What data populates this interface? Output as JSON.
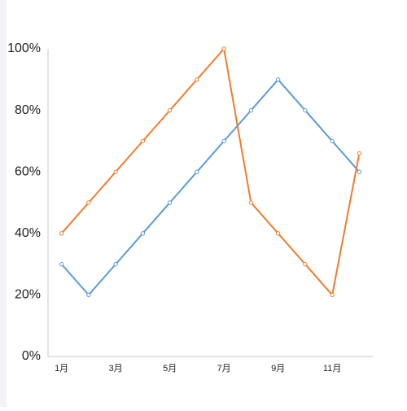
{
  "chart_data": {
    "type": "line",
    "categories": [
      "1月",
      null,
      "3月",
      null,
      "5月",
      null,
      "7月",
      null,
      "9月",
      null,
      "11月",
      null
    ],
    "series": [
      {
        "color": "#5b9bd5",
        "values": [
          30,
          20,
          30,
          40,
          50,
          60,
          70,
          80,
          90,
          80,
          70,
          60
        ]
      },
      {
        "color": "#ed7d31",
        "values": [
          40,
          50,
          60,
          70,
          80,
          90,
          100,
          50,
          40,
          30,
          20,
          66
        ]
      }
    ],
    "ylim": [
      0,
      100
    ],
    "yticks": [
      {
        "value": 0,
        "label": "0%"
      },
      {
        "value": 20,
        "label": "20%"
      },
      {
        "value": 40,
        "label": "40%"
      },
      {
        "value": 60,
        "label": "60%"
      },
      {
        "value": 80,
        "label": "80%"
      },
      {
        "value": 100,
        "label": "100%"
      }
    ],
    "grid": false
  }
}
